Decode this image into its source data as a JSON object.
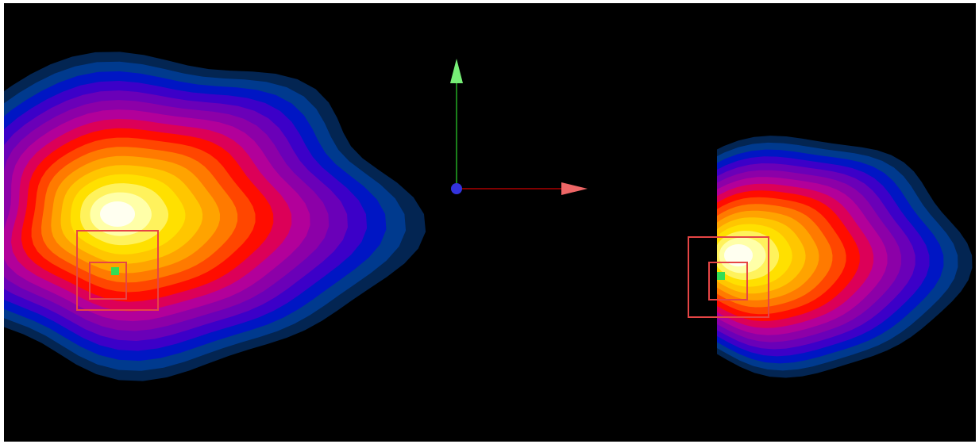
{
  "viewer": {
    "background_color": "#000000",
    "frame_color": "#ffffff",
    "colormap": [
      "#032552",
      "#003a8e",
      "#0016c4",
      "#3c00c8",
      "#6a00b8",
      "#8c00a8",
      "#b2009a",
      "#dc0058",
      "#ff0d00",
      "#ff4600",
      "#ff7a00",
      "#ffa300",
      "#ffc600",
      "#ffe000",
      "#fff25c",
      "#ffffa8",
      "#fffff0"
    ],
    "selection_box_color": "#e64545",
    "marker_color": "#33dd55"
  },
  "axes": {
    "x_axis_color": "#aa0000",
    "x_arrow_color": "#ee6666",
    "y_axis_color": "#22aa22",
    "y_arrow_color": "#77ee77",
    "z_axis_color": "#3333dd"
  }
}
